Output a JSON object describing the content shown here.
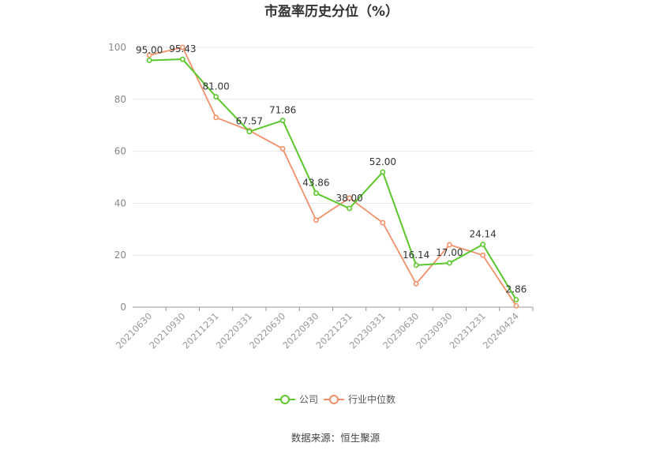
{
  "chart_data": {
    "type": "line",
    "title": "市盈率历史分位（%）",
    "categories": [
      "20210630",
      "20210930",
      "20211231",
      "20220331",
      "20220630",
      "20220930",
      "20221231",
      "20230331",
      "20230630",
      "20230930",
      "20231231",
      "20240424"
    ],
    "series": [
      {
        "name": "公司",
        "color": "#5ac72a",
        "values": [
          95.0,
          95.43,
          81.0,
          67.57,
          71.86,
          43.86,
          38.0,
          52.0,
          16.14,
          17.0,
          24.14,
          2.86
        ],
        "labels": [
          "95.00",
          "95.43",
          "81.00",
          "67.57",
          "71.86",
          "43.86",
          "38.00",
          "52.00",
          "16.14",
          "17.00",
          "24.14",
          "2.86"
        ]
      },
      {
        "name": "行业中位数",
        "color": "#f2906a",
        "values": [
          97.0,
          100.0,
          73.0,
          68.0,
          61.0,
          33.5,
          42.0,
          32.5,
          9.0,
          24.0,
          20.0,
          0.5
        ]
      }
    ],
    "yticks": [
      0,
      20,
      40,
      60,
      80,
      100
    ],
    "ylim": [
      0,
      100
    ],
    "grid": true,
    "legend_position": "bottom"
  },
  "source": "数据来源：恒生聚源"
}
